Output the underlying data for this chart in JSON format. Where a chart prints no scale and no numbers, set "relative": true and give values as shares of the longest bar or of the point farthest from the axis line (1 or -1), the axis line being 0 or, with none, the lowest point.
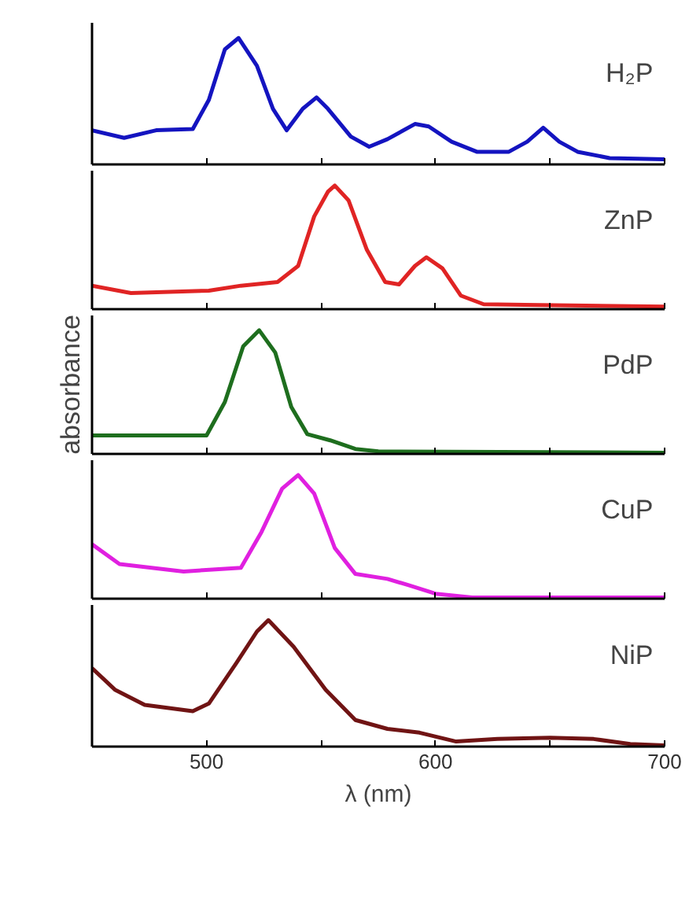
{
  "chart_data": [
    {
      "type": "line",
      "relative": true,
      "xlim": [
        450,
        700
      ],
      "xticks": [
        {
          "value": 500,
          "label": null
        },
        {
          "value": 550,
          "label": null
        },
        {
          "value": 600,
          "label": null
        },
        {
          "value": 650,
          "label": null
        },
        {
          "value": 700,
          "label": null
        }
      ],
      "tick_labels": false,
      "grid": false,
      "series": [
        {
          "name": "H₂P",
          "color": "#1414c0",
          "x": [
            450,
            464,
            478,
            494,
            501,
            508,
            514,
            522,
            529,
            535,
            542,
            548,
            553,
            563,
            571,
            579,
            591,
            597,
            607,
            618,
            632,
            640,
            647,
            654,
            662,
            676,
            700
          ],
          "values": [
            0.27,
            0.21,
            0.27,
            0.28,
            0.51,
            0.91,
            1.0,
            0.78,
            0.44,
            0.27,
            0.44,
            0.53,
            0.44,
            0.22,
            0.14,
            0.2,
            0.32,
            0.3,
            0.18,
            0.1,
            0.1,
            0.18,
            0.29,
            0.18,
            0.1,
            0.05,
            0.04
          ]
        }
      ]
    },
    {
      "type": "line",
      "relative": true,
      "xlim": [
        450,
        700
      ],
      "xticks": [
        {
          "value": 500,
          "label": null
        },
        {
          "value": 550,
          "label": null
        },
        {
          "value": 600,
          "label": null
        },
        {
          "value": 650,
          "label": null
        },
        {
          "value": 700,
          "label": null
        }
      ],
      "tick_labels": false,
      "grid": false,
      "series": [
        {
          "name": "ZnP",
          "color": "#e02424",
          "x": [
            450,
            467,
            501,
            515,
            531,
            540,
            547,
            553,
            556,
            562,
            570,
            578,
            584,
            591,
            596,
            603,
            611,
            621,
            639,
            700
          ],
          "values": [
            0.19,
            0.13,
            0.15,
            0.19,
            0.22,
            0.35,
            0.75,
            0.95,
            1.0,
            0.88,
            0.48,
            0.22,
            0.2,
            0.35,
            0.42,
            0.33,
            0.11,
            0.04,
            0.035,
            0.02
          ]
        }
      ]
    },
    {
      "type": "line",
      "relative": true,
      "ylabel": "absorbance",
      "xlim": [
        450,
        700
      ],
      "xticks": [
        {
          "value": 500,
          "label": null
        },
        {
          "value": 550,
          "label": null
        },
        {
          "value": 600,
          "label": null
        },
        {
          "value": 650,
          "label": null
        },
        {
          "value": 700,
          "label": null
        }
      ],
      "tick_labels": false,
      "grid": false,
      "series": [
        {
          "name": "PdP",
          "color": "#1e6e1e",
          "x": [
            450,
            478,
            500,
            508,
            516,
            523,
            530,
            537,
            544,
            554,
            565,
            575,
            700
          ],
          "values": [
            0.15,
            0.15,
            0.15,
            0.42,
            0.87,
            1.0,
            0.82,
            0.38,
            0.16,
            0.11,
            0.04,
            0.02,
            0.01
          ]
        }
      ]
    },
    {
      "type": "line",
      "relative": true,
      "xlim": [
        450,
        700
      ],
      "xticks": [
        {
          "value": 500,
          "label": null
        },
        {
          "value": 550,
          "label": null
        },
        {
          "value": 600,
          "label": null
        },
        {
          "value": 650,
          "label": null
        },
        {
          "value": 700,
          "label": null
        }
      ],
      "tick_labels": false,
      "grid": false,
      "series": [
        {
          "name": "CuP",
          "color": "#e020e0",
          "x": [
            450,
            462,
            490,
            515,
            524,
            533,
            540,
            547,
            556,
            565,
            579,
            588,
            600,
            616,
            700
          ],
          "values": [
            0.44,
            0.28,
            0.22,
            0.25,
            0.54,
            0.89,
            1.0,
            0.85,
            0.41,
            0.2,
            0.16,
            0.11,
            0.04,
            0.01,
            0.01
          ]
        }
      ]
    },
    {
      "type": "line",
      "relative": true,
      "xlabel": "λ (nm)",
      "xlim": [
        450,
        700
      ],
      "xticks": [
        500,
        {
          "value": 550,
          "label": null
        },
        600,
        {
          "value": 650,
          "label": null
        },
        700
      ],
      "tick_labels": "x",
      "grid": false,
      "series": [
        {
          "name": "NiP",
          "color": "#701414",
          "x": [
            450,
            460,
            473,
            494,
            501,
            513,
            522,
            527,
            538,
            552,
            565,
            579,
            593,
            609,
            627,
            650,
            669,
            685,
            700
          ],
          "values": [
            0.62,
            0.45,
            0.33,
            0.28,
            0.34,
            0.66,
            0.91,
            1.0,
            0.79,
            0.45,
            0.21,
            0.14,
            0.11,
            0.04,
            0.06,
            0.07,
            0.06,
            0.02,
            0.01
          ]
        }
      ]
    }
  ]
}
